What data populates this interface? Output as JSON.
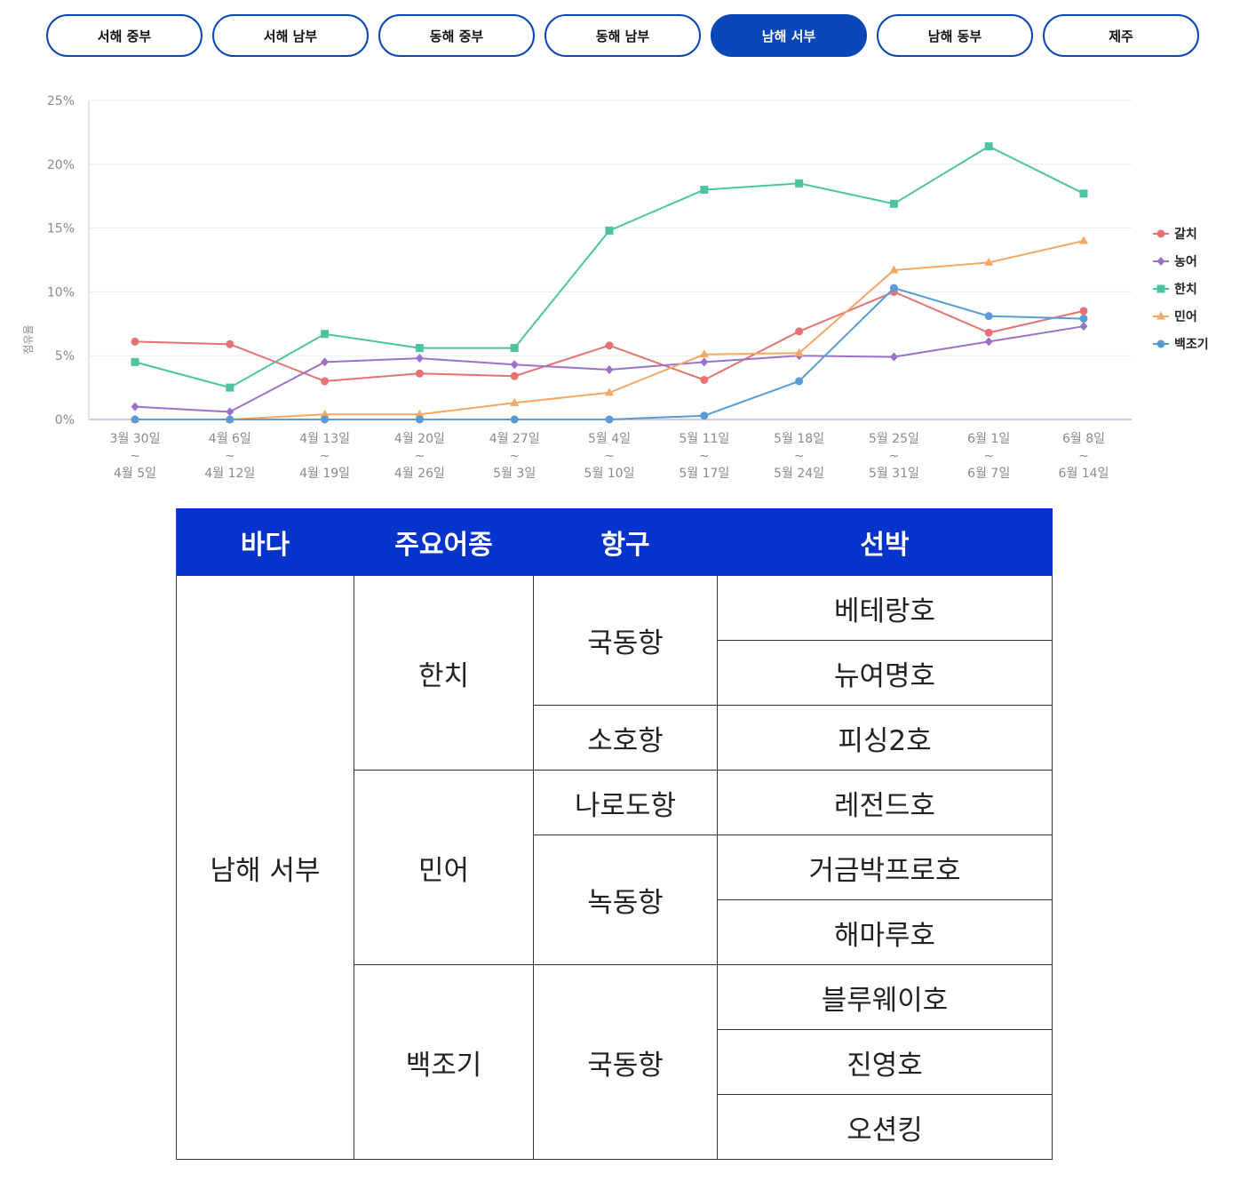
{
  "tabs": [
    {
      "label": "서해 중부",
      "active": false
    },
    {
      "label": "서해 남부",
      "active": false
    },
    {
      "label": "동해 중부",
      "active": false
    },
    {
      "label": "동해 남부",
      "active": false
    },
    {
      "label": "남해 서부",
      "active": true
    },
    {
      "label": "남해 동부",
      "active": false
    },
    {
      "label": "제주",
      "active": false
    }
  ],
  "colors": {
    "accent": "#0b46b8",
    "table_header": "#0434cc"
  },
  "chart_data": {
    "type": "line",
    "ylabel": "점유율",
    "ylim": [
      0,
      25
    ],
    "yticks": [
      "0%",
      "5%",
      "10%",
      "15%",
      "20%",
      "25%"
    ],
    "grid": true,
    "legend_position": "right",
    "categories": [
      [
        "3월 30일",
        "~",
        "4월 5일"
      ],
      [
        "4월 6일",
        "~",
        "4월 12일"
      ],
      [
        "4월 13일",
        "~",
        "4월 19일"
      ],
      [
        "4월 20일",
        "~",
        "4월 26일"
      ],
      [
        "4월 27일",
        "~",
        "5월 3일"
      ],
      [
        "5월 4일",
        "~",
        "5월 10일"
      ],
      [
        "5월 11일",
        "~",
        "5월 17일"
      ],
      [
        "5월 18일",
        "~",
        "5월 24일"
      ],
      [
        "5월 25일",
        "~",
        "5월 31일"
      ],
      [
        "6월 1일",
        "~",
        "6월 7일"
      ],
      [
        "6월 8일",
        "~",
        "6월 14일"
      ]
    ],
    "series": [
      {
        "name": "갈치",
        "color": "#e57373",
        "marker": "circle",
        "values": [
          6.1,
          5.9,
          3.0,
          3.6,
          3.4,
          5.8,
          3.1,
          6.9,
          10.0,
          6.8,
          8.5
        ]
      },
      {
        "name": "농어",
        "color": "#9c72c9",
        "marker": "diamond",
        "values": [
          1.0,
          0.6,
          4.5,
          4.8,
          4.3,
          3.9,
          4.5,
          5.0,
          4.9,
          6.1,
          7.3
        ]
      },
      {
        "name": "한치",
        "color": "#4dc4a0",
        "marker": "square",
        "values": [
          4.5,
          2.5,
          6.7,
          5.6,
          5.6,
          14.8,
          18.0,
          18.5,
          16.9,
          21.4,
          17.7
        ]
      },
      {
        "name": "민어",
        "color": "#f5a766",
        "marker": "triangle",
        "values": [
          0.0,
          0.0,
          0.4,
          0.4,
          1.3,
          2.1,
          5.1,
          5.2,
          11.7,
          12.3,
          14.0
        ]
      },
      {
        "name": "백조기",
        "color": "#5b9bd5",
        "marker": "circle",
        "values": [
          0.0,
          0.0,
          0.0,
          0.0,
          0.0,
          0.0,
          0.3,
          3.0,
          10.3,
          8.1,
          7.9
        ]
      }
    ]
  },
  "table": {
    "headers": [
      "바다",
      "주요어종",
      "항구",
      "선박"
    ],
    "sea": "남해 서부",
    "species": [
      "한치",
      "민어",
      "백조기"
    ],
    "ports": [
      "국동항",
      "소호항",
      "나로도항",
      "녹동항",
      "국동항"
    ],
    "ships": [
      "베테랑호",
      "뉴여명호",
      "피싱2호",
      "레전드호",
      "거금박프로호",
      "해마루호",
      "블루웨이호",
      "진영호",
      "오션킹"
    ]
  }
}
